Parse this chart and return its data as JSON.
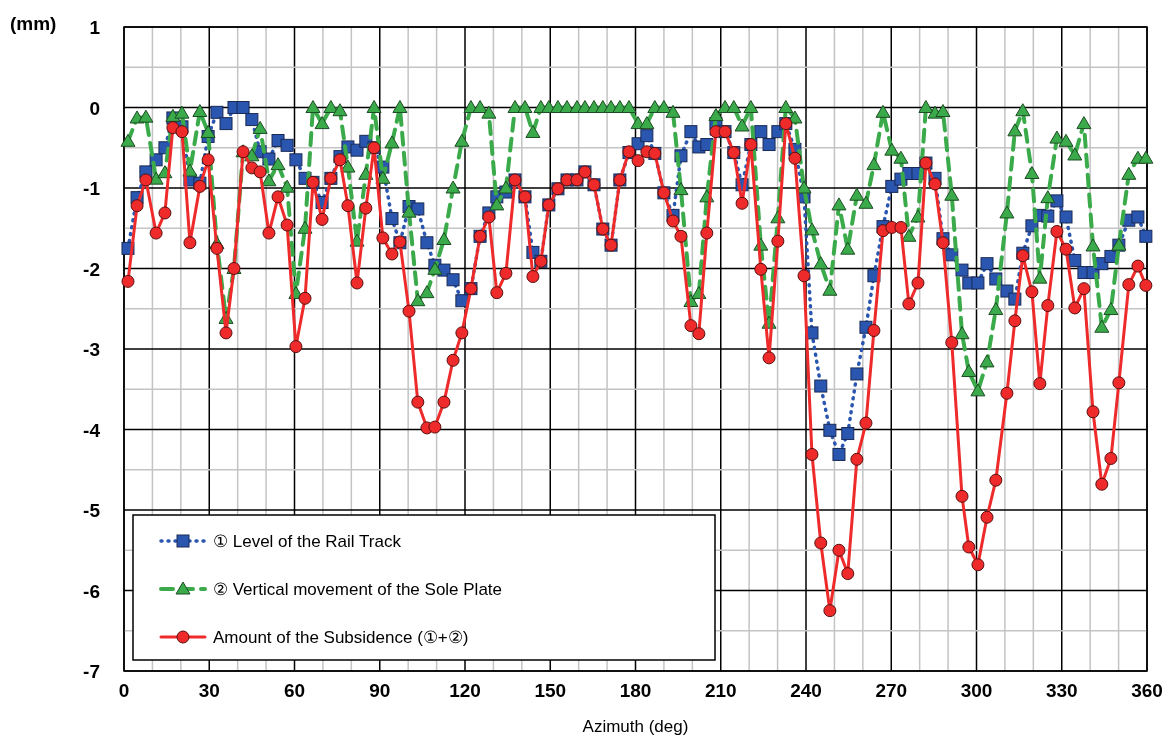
{
  "chart_data": {
    "type": "line",
    "ylabel": "(mm)",
    "xlabel": "Azimuth (deg)",
    "x": [
      1.4,
      4.6,
      7.7,
      11.3,
      14.4,
      17.2,
      20.4,
      23.2,
      26.7,
      29.6,
      32.7,
      35.9,
      38.7,
      41.9,
      45.0,
      47.9,
      51.0,
      54.2,
      57.4,
      60.5,
      63.7,
      66.5,
      69.7,
      72.8,
      76.0,
      78.8,
      82.0,
      85.1,
      88.0,
      91.1,
      94.3,
      97.1,
      100.3,
      103.4,
      106.6,
      109.4,
      112.6,
      115.8,
      118.9,
      122.1,
      125.3,
      128.4,
      131.2,
      134.4,
      137.6,
      141.1,
      143.9,
      146.7,
      149.5,
      152.7,
      155.9,
      159.4,
      162.2,
      165.4,
      168.5,
      171.4,
      174.5,
      177.7,
      180.9,
      184.0,
      186.8,
      190.0,
      193.2,
      196.0,
      199.5,
      202.3,
      205.1,
      208.3,
      211.5,
      214.6,
      217.5,
      220.6,
      224.1,
      227.0,
      230.1,
      232.9,
      236.1,
      239.3,
      242.1,
      245.2,
      248.4,
      251.6,
      254.7,
      257.9,
      261.1,
      263.9,
      267.1,
      270.2,
      273.4,
      276.2,
      279.4,
      282.2,
      285.4,
      288.2,
      291.3,
      294.9,
      297.3,
      300.5,
      303.7,
      306.8,
      310.7,
      313.5,
      316.3,
      319.5,
      322.3,
      325.1,
      328.3,
      331.5,
      334.6,
      337.8,
      341.0,
      344.1,
      347.3,
      350.1,
      353.6,
      356.8,
      359.6
    ],
    "series": [
      {
        "name": "① Level of the Rail Track",
        "color": "#2a56b0",
        "marker": "square",
        "line_style": "dotted",
        "values": [
          -1.75,
          -1.12,
          -0.8,
          -0.65,
          -0.5,
          -0.13,
          -0.24,
          -0.9,
          -0.94,
          -0.36,
          -0.06,
          -0.2,
          0,
          0,
          -0.15,
          -0.55,
          -0.64,
          -0.41,
          -0.47,
          -0.65,
          -0.88,
          -0.93,
          -1.18,
          -0.88,
          -0.61,
          -0.49,
          -0.53,
          -0.42,
          -0.5,
          -0.74,
          -1.38,
          -1.68,
          -1.23,
          -1.26,
          -1.68,
          -1.96,
          -2.02,
          -2.14,
          -2.4,
          -2.25,
          -1.6,
          -1.31,
          -1.11,
          -1.05,
          -0.9,
          -1.11,
          -1.8,
          -1.91,
          -1.21,
          -1.01,
          -0.9,
          -0.9,
          -0.8,
          -0.96,
          -1.51,
          -1.71,
          -0.9,
          -0.56,
          -0.45,
          -0.35,
          -0.57,
          -1.06,
          -1.34,
          -0.6,
          -0.3,
          -0.49,
          -0.46,
          -0.2,
          -0.3,
          -0.56,
          -0.96,
          -0.46,
          -0.3,
          -0.46,
          -0.3,
          -0.2,
          -0.52,
          -1.11,
          -2.8,
          -3.46,
          -4.01,
          -4.31,
          -4.05,
          -3.31,
          -2.73,
          -2.09,
          -1.48,
          -0.98,
          -0.89,
          -0.82,
          -0.82,
          -0.69,
          -0.88,
          -1.63,
          -1.83,
          -2.02,
          -2.18,
          -2.18,
          -1.94,
          -2.13,
          -2.28,
          -2.38,
          -1.81,
          -1.47,
          -1.34,
          -1.35,
          -1.16,
          -1.36,
          -1.9,
          -2.05,
          -2.05,
          -1.94,
          -1.85,
          -1.71,
          -1.4,
          -1.36,
          -1.6
        ]
      },
      {
        "name": "② Vertical movement of the Sole Plate",
        "color": "#3aaa4a",
        "marker": "triangle",
        "line_style": "dashed",
        "values": [
          -0.42,
          -0.13,
          -0.12,
          -0.89,
          -0.81,
          -0.11,
          -0.07,
          -0.79,
          -0.05,
          -0.31,
          -1.69,
          -2.62,
          -2.0,
          -0.55,
          -0.6,
          -0.26,
          -0.91,
          -0.71,
          -0.99,
          -2.31,
          -1.5,
          0,
          -0.2,
          0,
          -0.04,
          -0.74,
          -1.66,
          -0.83,
          0,
          -0.88,
          -0.44,
          0,
          -1.3,
          -2.4,
          -2.3,
          -2.01,
          -1.64,
          -1.0,
          -0.42,
          0,
          0,
          -0.07,
          -1.21,
          -1.0,
          0,
          0,
          -0.31,
          0,
          0,
          0,
          0,
          0,
          0,
          0,
          0,
          0,
          0,
          0,
          -0.2,
          -0.2,
          0,
          0,
          -0.06,
          -1.02,
          -2.41,
          -2.31,
          -1.11,
          -0.1,
          0,
          0,
          -0.23,
          0,
          -1.71,
          -2.68,
          -1.37,
          0,
          -0.13,
          -1.0,
          -1.52,
          -1.94,
          -2.27,
          -1.21,
          -1.76,
          -1.09,
          -1.19,
          -0.71,
          -0.06,
          -0.53,
          -0.63,
          -1.6,
          -1.36,
          0,
          -0.07,
          -0.05,
          -1.09,
          -2.81,
          -3.28,
          -3.52,
          -3.16,
          -2.51,
          -1.31,
          -0.29,
          -0.04,
          -0.82,
          -2.12,
          -1.12,
          -0.38,
          -0.42,
          -0.59,
          -0.2,
          -1.72,
          -2.73,
          -2.51,
          -1.71,
          -0.83,
          -0.63,
          -0.63
        ]
      },
      {
        "name": "Amount of the Subsidence (①+②)",
        "color": "#ee2a2a",
        "marker": "circle",
        "line_style": "solid",
        "values": [
          -2.16,
          -1.22,
          -0.9,
          -1.56,
          -1.31,
          -0.25,
          -0.3,
          -1.68,
          -0.98,
          -0.65,
          -1.75,
          -2.8,
          -2.0,
          -0.55,
          -0.75,
          -0.8,
          -1.56,
          -1.11,
          -1.46,
          -2.97,
          -2.37,
          -0.93,
          -1.39,
          -0.88,
          -0.65,
          -1.22,
          -2.18,
          -1.25,
          -0.5,
          -1.62,
          -1.82,
          -1.67,
          -2.53,
          -3.66,
          -3.98,
          -3.97,
          -3.66,
          -3.14,
          -2.8,
          -2.25,
          -1.6,
          -1.36,
          -2.3,
          -2.06,
          -0.9,
          -1.11,
          -2.1,
          -1.91,
          -1.21,
          -1.01,
          -0.9,
          -0.9,
          -0.8,
          -0.96,
          -1.51,
          -1.71,
          -0.9,
          -0.55,
          -0.66,
          -0.55,
          -0.57,
          -1.06,
          -1.41,
          -1.6,
          -2.71,
          -2.81,
          -1.56,
          -0.3,
          -0.3,
          -0.56,
          -1.19,
          -0.46,
          -2.01,
          -3.11,
          -1.66,
          -0.2,
          -0.63,
          -2.09,
          -4.31,
          -5.41,
          -6.25,
          -5.5,
          -5.79,
          -4.37,
          -3.92,
          -2.77,
          -1.53,
          -1.49,
          -1.49,
          -2.44,
          -2.18,
          -0.69,
          -0.95,
          -1.68,
          -2.92,
          -4.83,
          -5.46,
          -5.68,
          -5.09,
          -4.63,
          -3.55,
          -2.65,
          -1.84,
          -2.29,
          -3.43,
          -2.46,
          -1.54,
          -1.76,
          -2.49,
          -2.25,
          -3.78,
          -4.68,
          -4.36,
          -3.42,
          -2.2,
          -1.97,
          -2.21
        ]
      }
    ],
    "xlim": [
      0,
      360
    ],
    "xticks": [
      0,
      {
        "value": 10,
        "label": null
      },
      {
        "value": 20,
        "label": null
      },
      30,
      {
        "value": 40,
        "label": null
      },
      {
        "value": 50,
        "label": null
      },
      60,
      {
        "value": 70,
        "label": null
      },
      {
        "value": 80,
        "label": null
      },
      90,
      {
        "value": 100,
        "label": null
      },
      {
        "value": 110,
        "label": null
      },
      120,
      {
        "value": 130,
        "label": null
      },
      {
        "value": 140,
        "label": null
      },
      150,
      {
        "value": 160,
        "label": null
      },
      {
        "value": 170,
        "label": null
      },
      180,
      {
        "value": 190,
        "label": null
      },
      {
        "value": 200,
        "label": null
      },
      210,
      {
        "value": 220,
        "label": null
      },
      {
        "value": 230,
        "label": null
      },
      240,
      {
        "value": 250,
        "label": null
      },
      {
        "value": 260,
        "label": null
      },
      270,
      {
        "value": 280,
        "label": null
      },
      {
        "value": 290,
        "label": null
      },
      300,
      {
        "value": 310,
        "label": null
      },
      {
        "value": 320,
        "label": null
      },
      330,
      {
        "value": 340,
        "label": null
      },
      {
        "value": 350,
        "label": null
      },
      360
    ],
    "ylim": [
      -7,
      1
    ],
    "yticks": [
      -7,
      {
        "value": -6.5,
        "label": null
      },
      -6,
      {
        "value": -5.5,
        "label": null
      },
      -5,
      {
        "value": -4.5,
        "label": null
      },
      -4,
      {
        "value": -3.5,
        "label": null
      },
      -3,
      {
        "value": -2.5,
        "label": null
      },
      -2,
      {
        "value": -1.5,
        "label": null
      },
      -1,
      {
        "value": -0.5,
        "label": null
      },
      0,
      {
        "value": 0.5,
        "label": null
      },
      1
    ],
    "grid": true,
    "legend": "bottom left"
  }
}
